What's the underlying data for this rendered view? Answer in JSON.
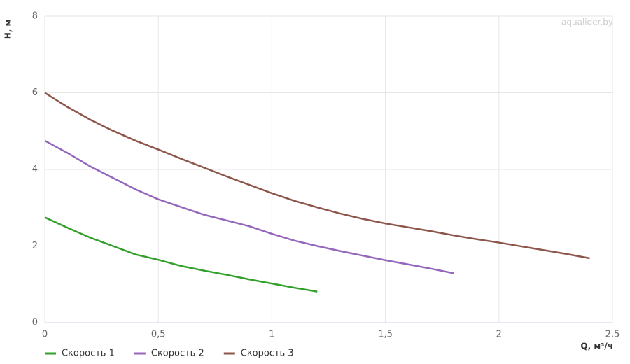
{
  "chart_data": {
    "type": "line",
    "watermark": "aqualider.by",
    "x_label": "Q, м³/ч",
    "y_label": "H, м",
    "xlim": [
      0,
      2.5
    ],
    "ylim": [
      0,
      8
    ],
    "xticks": [
      0,
      {
        "value": 0.5,
        "label": "0,5"
      },
      1,
      {
        "value": 1.5,
        "label": "1,5"
      },
      2,
      {
        "value": 2.5,
        "label": "2,5"
      }
    ],
    "yticks": [
      0,
      2,
      4,
      6,
      8
    ],
    "grid": true,
    "legend": "bottom-left",
    "series": [
      {
        "name": "Скорость 1",
        "color": "#33a02c",
        "x": [
          0,
          0.1,
          0.2,
          0.3,
          0.4,
          0.5,
          0.6,
          0.7,
          0.8,
          0.9,
          1.0,
          1.1,
          1.2
        ],
        "values": [
          2.75,
          2.48,
          2.22,
          2.0,
          1.78,
          1.64,
          1.48,
          1.36,
          1.25,
          1.13,
          1.02,
          0.91,
          0.81
        ]
      },
      {
        "name": "Скорость 2",
        "color": "#9467bd",
        "x": [
          0,
          0.1,
          0.2,
          0.3,
          0.4,
          0.5,
          0.6,
          0.7,
          0.8,
          0.9,
          1.0,
          1.1,
          1.2,
          1.3,
          1.4,
          1.5,
          1.6,
          1.7,
          1.8
        ],
        "values": [
          4.75,
          4.43,
          4.08,
          3.78,
          3.48,
          3.22,
          3.02,
          2.82,
          2.67,
          2.52,
          2.32,
          2.14,
          2.0,
          1.87,
          1.75,
          1.63,
          1.52,
          1.41,
          1.29
        ]
      },
      {
        "name": "Скорость 3",
        "color": "#8c564b",
        "x": [
          0,
          0.1,
          0.2,
          0.3,
          0.4,
          0.5,
          0.6,
          0.7,
          0.8,
          0.9,
          1.0,
          1.1,
          1.2,
          1.3,
          1.4,
          1.5,
          1.6,
          1.7,
          1.8,
          1.9,
          2.0,
          2.1,
          2.2,
          2.3,
          2.4
        ],
        "values": [
          6.0,
          5.63,
          5.3,
          5.01,
          4.75,
          4.52,
          4.28,
          4.05,
          3.82,
          3.6,
          3.38,
          3.18,
          3.01,
          2.85,
          2.71,
          2.59,
          2.49,
          2.39,
          2.28,
          2.18,
          2.09,
          1.99,
          1.89,
          1.79,
          1.68
        ]
      }
    ]
  }
}
